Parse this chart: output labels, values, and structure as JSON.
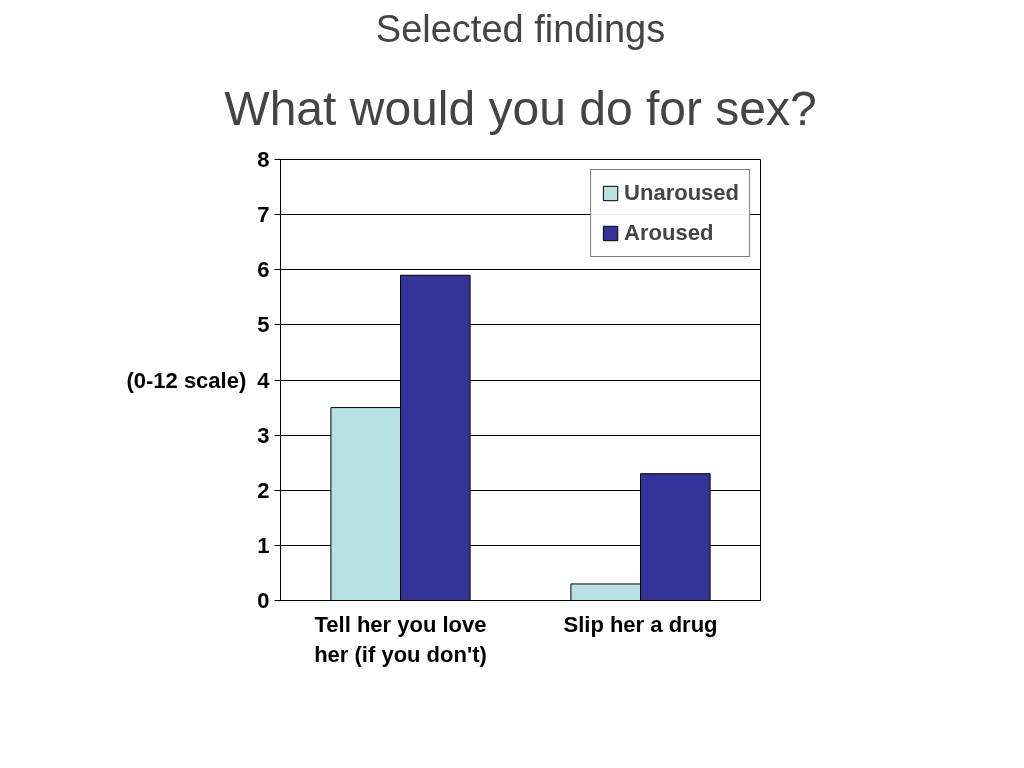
{
  "chart_data": {
    "type": "bar",
    "subtitle": "Selected findings",
    "title": "What would you do for sex?",
    "ylabel": "(0-12 scale)",
    "categories": [
      "Tell her you love her (if you don't)",
      "Slip her a drug"
    ],
    "series": [
      {
        "name": "Unaroused",
        "color": "#b8e0e0",
        "values": [
          3.5,
          0.3
        ]
      },
      {
        "name": "Aroused",
        "color": "#333399",
        "values": [
          5.9,
          2.3
        ]
      }
    ],
    "ylim": [
      0,
      8
    ],
    "yticks": [
      0,
      1,
      2,
      3,
      4,
      5,
      6,
      7,
      8
    ],
    "grid": "y",
    "legend": "top right"
  }
}
